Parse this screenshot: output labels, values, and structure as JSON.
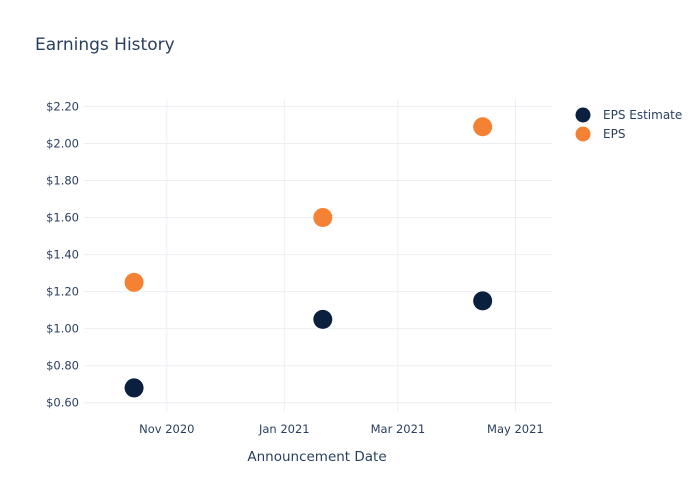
{
  "chart_data": {
    "type": "scatter",
    "title": "Earnings History",
    "xlabel": "Announcement Date",
    "ylabel": "",
    "x_type": "date",
    "xlim": [
      "2020-09-19",
      "2021-05-20"
    ],
    "ylim": [
      0.55,
      2.24
    ],
    "x_ticks": [
      {
        "value": "2020-11-01",
        "label": "Nov 2020"
      },
      {
        "value": "2021-01-01",
        "label": "Jan 2021"
      },
      {
        "value": "2021-03-01",
        "label": "Mar 2021"
      },
      {
        "value": "2021-05-01",
        "label": "May 2021"
      }
    ],
    "y_ticks": [
      {
        "value": 0.6,
        "label": "$0.60"
      },
      {
        "value": 0.8,
        "label": "$0.80"
      },
      {
        "value": 1.0,
        "label": "$1.00"
      },
      {
        "value": 1.2,
        "label": "$1.20"
      },
      {
        "value": 1.4,
        "label": "$1.40"
      },
      {
        "value": 1.6,
        "label": "$1.60"
      },
      {
        "value": 1.8,
        "label": "$1.80"
      },
      {
        "value": 2.0,
        "label": "$2.00"
      },
      {
        "value": 2.2,
        "label": "$2.20"
      }
    ],
    "grid": true,
    "legend_position": "top-right",
    "series": [
      {
        "name": "EPS Estimate",
        "color": "#0b1f3f",
        "points": [
          {
            "x": "2020-10-15",
            "y": 0.68
          },
          {
            "x": "2021-01-21",
            "y": 1.05
          },
          {
            "x": "2021-04-14",
            "y": 1.15
          }
        ]
      },
      {
        "name": "EPS",
        "color": "#f58134",
        "points": [
          {
            "x": "2020-10-15",
            "y": 1.25
          },
          {
            "x": "2021-01-21",
            "y": 1.6
          },
          {
            "x": "2021-04-14",
            "y": 2.09
          }
        ]
      }
    ]
  }
}
